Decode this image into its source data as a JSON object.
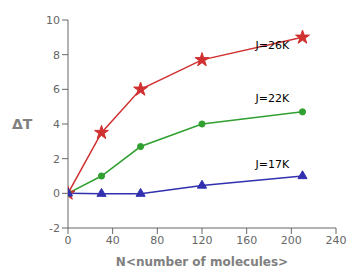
{
  "chart_data": {
    "type": "line",
    "x": [
      0,
      30,
      65,
      120,
      210
    ],
    "series": [
      {
        "name": "J=26K",
        "color": "#d03030",
        "marker": "star",
        "values": [
          0,
          3.5,
          6.0,
          7.7,
          9.0
        ]
      },
      {
        "name": "J=22K",
        "color": "#30a030",
        "marker": "circle",
        "values": [
          0,
          1.0,
          2.7,
          4.0,
          4.7
        ]
      },
      {
        "name": "J=17K",
        "color": "#3030b0",
        "marker": "triangle",
        "values": [
          0,
          -0.02,
          -0.02,
          0.45,
          1.0
        ]
      }
    ],
    "x_label": "N<number of molecules>",
    "y_label": "ΔT",
    "xlim": [
      0,
      240
    ],
    "ylim": [
      -2,
      10
    ],
    "xticks": [
      0,
      40,
      80,
      120,
      160,
      200,
      240
    ],
    "yticks": [
      -2,
      0,
      2,
      4,
      6,
      8,
      10
    ],
    "grid": false,
    "annotations": [
      {
        "text": "J=26K",
        "x": 168,
        "y": 8.55
      },
      {
        "text": "J=22K",
        "x": 168,
        "y": 5.5
      },
      {
        "text": "J=17K",
        "x": 168,
        "y": 1.7
      }
    ]
  }
}
